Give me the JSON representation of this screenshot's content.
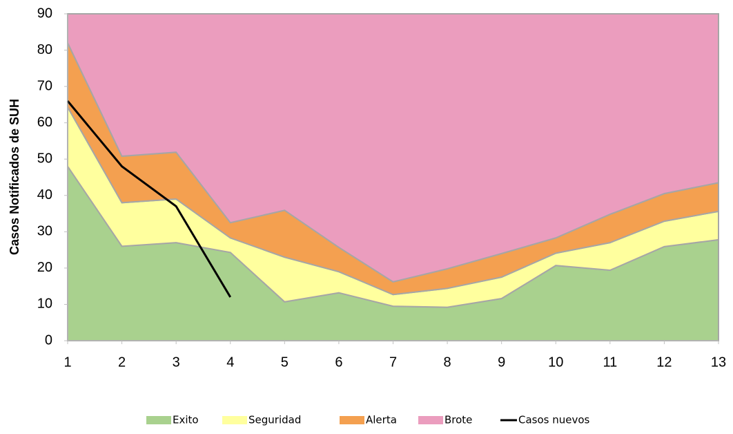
{
  "chart_data": {
    "type": "stacked-area-line",
    "y_label": "Casos Notificados de SUH",
    "x": [
      1,
      2,
      3,
      4,
      5,
      6,
      7,
      8,
      9,
      10,
      11,
      12,
      13
    ],
    "xlim": [
      1,
      13
    ],
    "xticks": [
      1,
      2,
      3,
      4,
      5,
      6,
      7,
      8,
      9,
      10,
      11,
      12,
      13
    ],
    "ylim": [
      0,
      90
    ],
    "yticks": [
      0,
      10,
      20,
      30,
      40,
      50,
      60,
      70,
      80,
      90
    ],
    "legend": "bottom",
    "series": [
      {
        "name": "Exito",
        "kind": "area",
        "color": "#a9d18e",
        "values": [
          48,
          26,
          27,
          24.3,
          10.7,
          13.2,
          9.5,
          9.2,
          11.6,
          20.7,
          19.4,
          25.9,
          27.8
        ]
      },
      {
        "name": "Seguridad",
        "kind": "area",
        "color": "#ffff9e",
        "values": [
          16.3,
          12,
          12,
          4,
          12.3,
          5.8,
          3.2,
          5.2,
          5.9,
          3.4,
          7.6,
          7,
          7.8
        ]
      },
      {
        "name": "Alerta",
        "kind": "area",
        "color": "#f4a050",
        "values": [
          17.7,
          12.8,
          12.9,
          4.2,
          12.9,
          6.7,
          3.5,
          5.4,
          6.5,
          4.2,
          7.8,
          7.6,
          7.9
        ]
      },
      {
        "name": "Brote",
        "kind": "area",
        "color": "#eb9dbe",
        "values": [
          8,
          39.2,
          38.1,
          57.5,
          54.1,
          64.3,
          73.8,
          70.2,
          66,
          61.7,
          55.2,
          49.5,
          46.5
        ]
      },
      {
        "name": "Casos nuevos",
        "kind": "line",
        "color": "#000000",
        "values": [
          66,
          48,
          37,
          12,
          null,
          null,
          null,
          null,
          null,
          null,
          null,
          null,
          null
        ]
      }
    ]
  }
}
